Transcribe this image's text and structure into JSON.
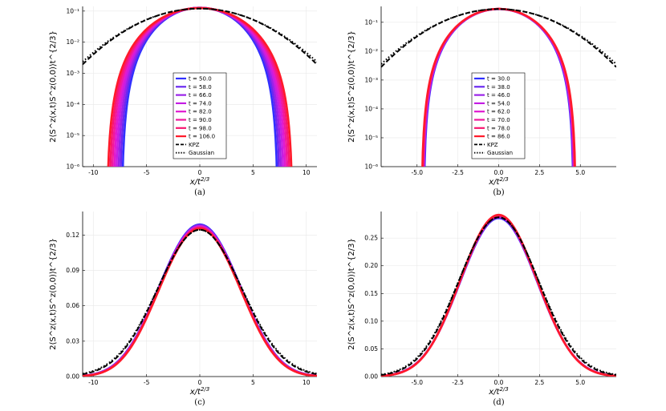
{
  "chart_data": [
    {
      "type": "line",
      "panel_label": "(a)",
      "yscale": "log",
      "xlabel": "x/t",
      "xlabel_sup": "2/3",
      "ylabel": "2⟨S^z(x,t)S^z(0,0)⟩t^{2/3}",
      "xlim": [
        -11,
        11
      ],
      "ylim_exp": [
        -6,
        -0.85
      ],
      "x_ticks": [
        -10,
        -5,
        0,
        5,
        10
      ],
      "x_tick_labels": [
        "-10",
        "-5",
        "0",
        "5",
        "10"
      ],
      "y_ticks_exp": [
        -6,
        -5,
        -4,
        -3,
        -2,
        -1
      ],
      "y_tick_labels": [
        "10⁻⁶",
        "10⁻⁵",
        "10⁻⁴",
        "10⁻³",
        "10⁻²",
        "10⁻¹"
      ],
      "legend_position": "bottom-center",
      "series": [
        {
          "name": "t = 50.0",
          "color": "#3030ff",
          "kind": "data",
          "peak": 0.128,
          "width": 7.35
        },
        {
          "name": "t = 58.0",
          "color": "#6a28f0",
          "kind": "data",
          "peak": 0.128,
          "width": 7.55
        },
        {
          "name": "t = 66.0",
          "color": "#9a22e8",
          "kind": "data",
          "peak": 0.127,
          "width": 7.75
        },
        {
          "name": "t = 74.0",
          "color": "#c41ee4",
          "kind": "data",
          "peak": 0.127,
          "width": 7.95
        },
        {
          "name": "t = 82.0",
          "color": "#e01ad0",
          "kind": "data",
          "peak": 0.126,
          "width": 8.15
        },
        {
          "name": "t = 90.0",
          "color": "#f0189e",
          "kind": "data",
          "peak": 0.126,
          "width": 8.35
        },
        {
          "name": "t = 98.0",
          "color": "#f81670",
          "kind": "data",
          "peak": 0.125,
          "width": 8.55
        },
        {
          "name": "t = 106.0",
          "color": "#ff1a2a",
          "kind": "data",
          "peak": 0.125,
          "width": 8.75
        },
        {
          "name": "KPZ",
          "color": "#000000",
          "kind": "kpz",
          "peak": 0.1202
        },
        {
          "name": "Gaussian",
          "color": "#000000",
          "kind": "gauss",
          "peak": 0.1202
        }
      ]
    },
    {
      "type": "line",
      "panel_label": "(b)",
      "yscale": "log",
      "xlabel": "x/t",
      "xlabel_sup": "2/3",
      "ylabel": "2⟨S^z(x,t)S^z(0,0)⟩t^{2/3}",
      "xlim": [
        -7.2,
        7.2
      ],
      "ylim_exp": [
        -6,
        -0.45
      ],
      "x_ticks": [
        -5,
        -2.5,
        0,
        2.5,
        5
      ],
      "x_tick_labels": [
        "-5.0",
        "-2.5",
        "0.0",
        "2.5",
        "5.0"
      ],
      "y_ticks_exp": [
        -6,
        -5,
        -4,
        -3,
        -2,
        -1
      ],
      "y_tick_labels": [
        "10⁻⁶",
        "10⁻⁵",
        "10⁻⁴",
        "10⁻³",
        "10⁻²",
        "10⁻¹"
      ],
      "legend_position": "bottom-center",
      "series": [
        {
          "name": "t = 30.0",
          "color": "#3030ff",
          "kind": "data",
          "peak": 0.288,
          "width": 4.6
        },
        {
          "name": "t = 38.0",
          "color": "#6a28f0",
          "kind": "data",
          "peak": 0.288,
          "width": 4.62
        },
        {
          "name": "t = 46.0",
          "color": "#9a22e8",
          "kind": "data",
          "peak": 0.289,
          "width": 4.64
        },
        {
          "name": "t = 54.0",
          "color": "#c41ee4",
          "kind": "data",
          "peak": 0.289,
          "width": 4.66
        },
        {
          "name": "t = 62.0",
          "color": "#e01ad0",
          "kind": "data",
          "peak": 0.29,
          "width": 4.68
        },
        {
          "name": "t = 70.0",
          "color": "#f0189e",
          "kind": "data",
          "peak": 0.29,
          "width": 4.7
        },
        {
          "name": "t = 78.0",
          "color": "#f81670",
          "kind": "data",
          "peak": 0.291,
          "width": 4.72
        },
        {
          "name": "t = 86.0",
          "color": "#ff1a2a",
          "kind": "data",
          "peak": 0.291,
          "width": 4.74
        },
        {
          "name": "KPZ",
          "color": "#000000",
          "kind": "kpz",
          "peak": 0.2875
        },
        {
          "name": "Gaussian",
          "color": "#000000",
          "kind": "gauss",
          "peak": 0.2875
        }
      ]
    },
    {
      "type": "line",
      "panel_label": "(c)",
      "yscale": "linear",
      "xlabel": "x/t",
      "xlabel_sup": "2/3",
      "ylabel": "2⟨S^z(x,t)S^z(0,0)⟩t^{2/3}",
      "xlim": [
        -11,
        11
      ],
      "ylim": [
        0,
        0.14
      ],
      "x_ticks": [
        -10,
        -5,
        0,
        5,
        10
      ],
      "x_tick_labels": [
        "-10",
        "-5",
        "0",
        "5",
        "10"
      ],
      "y_ticks": [
        0,
        0.03,
        0.06,
        0.09,
        0.12
      ],
      "y_tick_labels": [
        "0.00",
        "0.03",
        "0.06",
        "0.09",
        "0.12"
      ],
      "series": [
        {
          "name": "t = 50.0",
          "color": "#3030ff",
          "kind": "data",
          "peak": 0.129,
          "width": 7.35
        },
        {
          "name": "t = 58.0",
          "color": "#6a28f0",
          "kind": "data",
          "peak": 0.1285,
          "width": 7.55
        },
        {
          "name": "t = 66.0",
          "color": "#9a22e8",
          "kind": "data",
          "peak": 0.128,
          "width": 7.75
        },
        {
          "name": "t = 74.0",
          "color": "#c41ee4",
          "kind": "data",
          "peak": 0.1275,
          "width": 7.95
        },
        {
          "name": "t = 82.0",
          "color": "#e01ad0",
          "kind": "data",
          "peak": 0.127,
          "width": 8.15
        },
        {
          "name": "t = 90.0",
          "color": "#f0189e",
          "kind": "data",
          "peak": 0.1265,
          "width": 8.35
        },
        {
          "name": "t = 98.0",
          "color": "#f81670",
          "kind": "data",
          "peak": 0.126,
          "width": 8.55
        },
        {
          "name": "t = 106.0",
          "color": "#ff1a2a",
          "kind": "data",
          "peak": 0.1255,
          "width": 8.75
        },
        {
          "name": "KPZ",
          "color": "#000000",
          "kind": "kpz",
          "peak": 0.1245
        },
        {
          "name": "Gaussian",
          "color": "#000000",
          "kind": "gauss",
          "peak": 0.1245
        }
      ]
    },
    {
      "type": "line",
      "panel_label": "(d)",
      "yscale": "linear",
      "xlabel": "x/t",
      "xlabel_sup": "2/3",
      "ylabel": "2⟨S^z(x,t)S^z(0,0)⟩t^{2/3}",
      "xlim": [
        -7.2,
        7.2
      ],
      "ylim": [
        0,
        0.298
      ],
      "x_ticks": [
        -5,
        -2.5,
        0,
        2.5,
        5
      ],
      "x_tick_labels": [
        "-5.0",
        "-2.5",
        "0.0",
        "2.5",
        "5.0"
      ],
      "y_ticks": [
        0,
        0.05,
        0.1,
        0.15,
        0.2,
        0.25
      ],
      "y_tick_labels": [
        "0.00",
        "0.05",
        "0.10",
        "0.15",
        "0.20",
        "0.25"
      ],
      "series": [
        {
          "name": "t = 30.0",
          "color": "#3030ff",
          "kind": "data",
          "peak": 0.286,
          "width": 4.6
        },
        {
          "name": "t = 38.0",
          "color": "#6a28f0",
          "kind": "data",
          "peak": 0.287,
          "width": 4.62
        },
        {
          "name": "t = 46.0",
          "color": "#9a22e8",
          "kind": "data",
          "peak": 0.288,
          "width": 4.64
        },
        {
          "name": "t = 54.0",
          "color": "#c41ee4",
          "kind": "data",
          "peak": 0.289,
          "width": 4.66
        },
        {
          "name": "t = 62.0",
          "color": "#e01ad0",
          "kind": "data",
          "peak": 0.29,
          "width": 4.68
        },
        {
          "name": "t = 70.0",
          "color": "#f0189e",
          "kind": "data",
          "peak": 0.29,
          "width": 4.7
        },
        {
          "name": "t = 78.0",
          "color": "#f81670",
          "kind": "data",
          "peak": 0.291,
          "width": 4.72
        },
        {
          "name": "t = 86.0",
          "color": "#ff1a2a",
          "kind": "data",
          "peak": 0.292,
          "width": 4.74
        },
        {
          "name": "KPZ",
          "color": "#000000",
          "kind": "kpz",
          "peak": 0.2875
        },
        {
          "name": "Gaussian",
          "color": "#000000",
          "kind": "gauss",
          "peak": 0.2875
        }
      ]
    }
  ]
}
